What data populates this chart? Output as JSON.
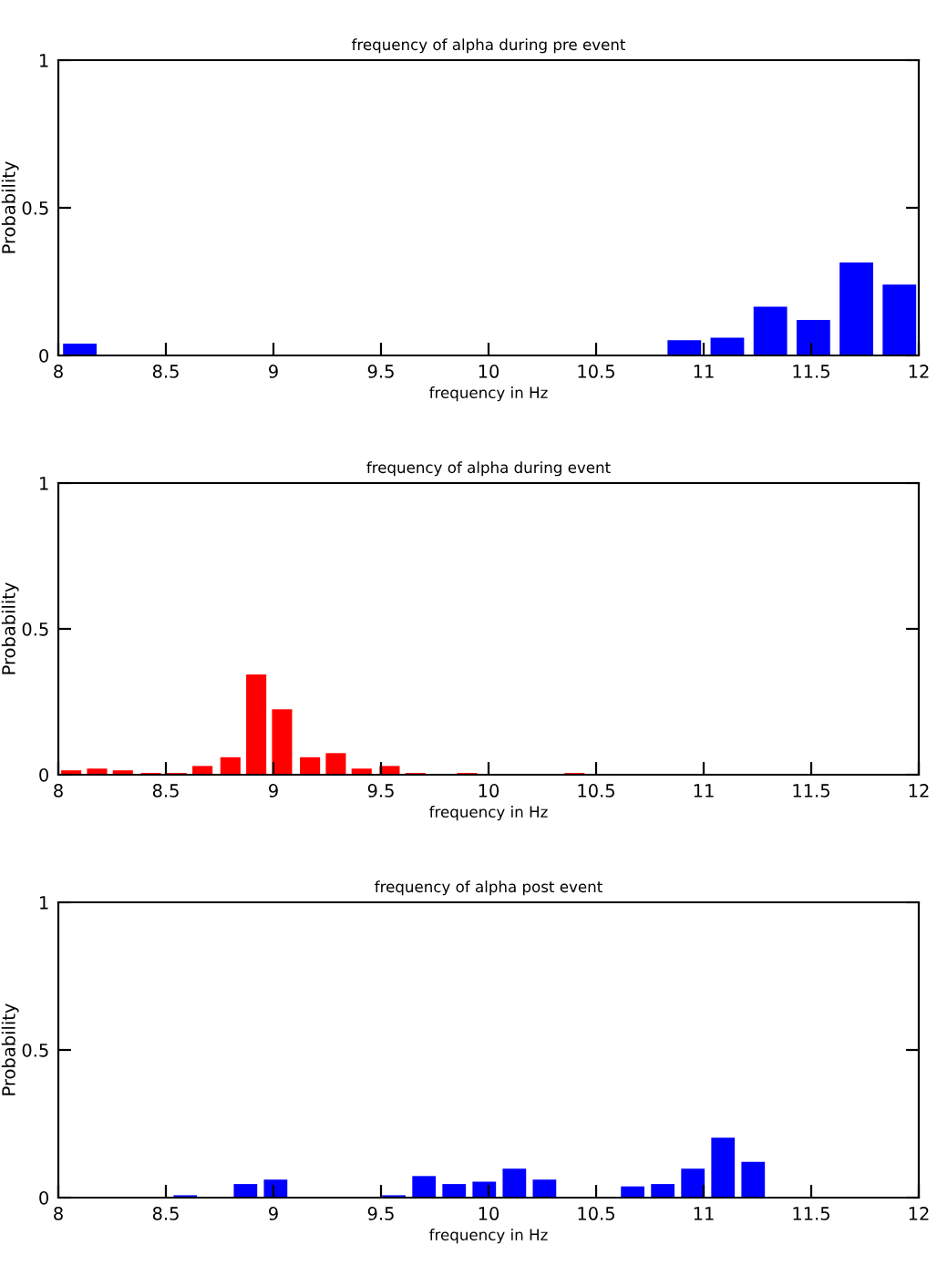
{
  "chart_data": [
    {
      "type": "bar",
      "title": "frequency of alpha during pre event",
      "xlabel": "frequency in Hz",
      "ylabel": "Probability",
      "x": [
        8.1,
        10.91,
        11.11,
        11.31,
        11.51,
        11.71,
        11.91
      ],
      "values": [
        0.04,
        0.052,
        0.06,
        0.165,
        0.12,
        0.315,
        0.24
      ],
      "color": "#0000ff",
      "xlim": [
        8,
        12
      ],
      "xticks": [
        8,
        8.5,
        9,
        9.5,
        10,
        10.5,
        11,
        11.5,
        12
      ],
      "ylim": [
        0,
        1
      ],
      "yticks": [
        0,
        0.5,
        1
      ],
      "grid": false
    },
    {
      "type": "bar",
      "title": "frequency of alpha during event",
      "xlabel": "frequency in Hz",
      "ylabel": "Probability",
      "x": [
        8.06,
        8.18,
        8.3,
        8.43,
        8.55,
        8.67,
        8.8,
        8.92,
        9.04,
        9.17,
        9.29,
        9.41,
        9.54,
        9.66,
        9.9,
        10.4
      ],
      "values": [
        0.015,
        0.021,
        0.015,
        0.006,
        0.006,
        0.03,
        0.06,
        0.344,
        0.224,
        0.06,
        0.074,
        0.021,
        0.03,
        0.006,
        0.006,
        0.006
      ],
      "color": "#ff0000",
      "xlim": [
        8,
        12
      ],
      "xticks": [
        8,
        8.5,
        9,
        9.5,
        10,
        10.5,
        11,
        11.5,
        12
      ],
      "ylim": [
        0,
        1
      ],
      "yticks": [
        0,
        0.5,
        1
      ],
      "grid": false
    },
    {
      "type": "bar",
      "title": "frequency of alpha post event",
      "xlabel": "frequency in Hz",
      "ylabel": "Probability",
      "x": [
        8.59,
        8.87,
        9.01,
        9.56,
        9.7,
        9.84,
        9.98,
        10.12,
        10.26,
        10.67,
        10.81,
        10.95,
        11.09,
        11.23
      ],
      "values": [
        0.008,
        0.046,
        0.061,
        0.008,
        0.073,
        0.046,
        0.054,
        0.098,
        0.061,
        0.038,
        0.046,
        0.098,
        0.203,
        0.121
      ],
      "color": "#0000ff",
      "xlim": [
        8,
        12
      ],
      "xticks": [
        8,
        8.5,
        9,
        9.5,
        10,
        10.5,
        11,
        11.5,
        12
      ],
      "ylim": [
        0,
        1
      ],
      "yticks": [
        0,
        0.5,
        1
      ],
      "grid": false
    }
  ]
}
